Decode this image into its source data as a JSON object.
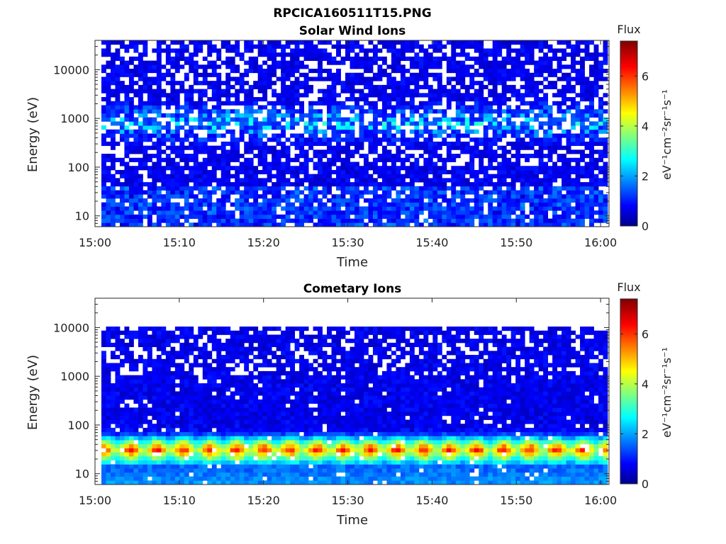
{
  "figure_title": "RPCICA160511T15.PNG",
  "chart_data": [
    {
      "type": "heatmap",
      "title": "Solar Wind Ions",
      "xlabel": "Time",
      "ylabel": "Energy (eV)",
      "x_ticks": [
        "15:00",
        "15:10",
        "15:20",
        "15:30",
        "15:40",
        "15:50",
        "16:00"
      ],
      "y_ticks": [
        "10",
        "100",
        "1000",
        "10000"
      ],
      "y_scale": "log",
      "xlim": [
        "15:00",
        "16:01"
      ],
      "ylim": [
        6,
        40000
      ],
      "colorbar": {
        "title": "Flux",
        "label": "eV⁻¹cm⁻²sr⁻¹s⁻¹",
        "ticks": [
          "0",
          "2",
          "4",
          "6"
        ],
        "range": [
          0,
          7.4
        ]
      },
      "approx_profile": {
        "background_flux": 0.8,
        "peak_flux": 3.0,
        "peak_energy_ev": [
          500,
          1300
        ],
        "sparse_above_ev": 100,
        "gaps": "many white (no data) cells throughout"
      }
    },
    {
      "type": "heatmap",
      "title": "Cometary Ions",
      "xlabel": "Time",
      "ylabel": "Energy (eV)",
      "x_ticks": [
        "15:00",
        "15:10",
        "15:20",
        "15:30",
        "15:40",
        "15:50",
        "16:00"
      ],
      "y_ticks": [
        "10",
        "100",
        "1000",
        "10000"
      ],
      "y_scale": "log",
      "xlim": [
        "15:00",
        "16:01"
      ],
      "ylim": [
        6,
        40000
      ],
      "colorbar": {
        "title": "Flux",
        "label": "eV⁻¹cm⁻²sr⁻¹s⁻¹",
        "ticks": [
          "0",
          "2",
          "4",
          "6"
        ],
        "range": [
          0,
          7.4
        ]
      },
      "approx_profile": {
        "background_flux": 0.8,
        "peak_flux": 6.0,
        "peak_energy_ev": [
          25,
          40
        ],
        "max_energy_ev": 11000,
        "gaps": "white (no data) cells, denser at high energy"
      }
    }
  ]
}
